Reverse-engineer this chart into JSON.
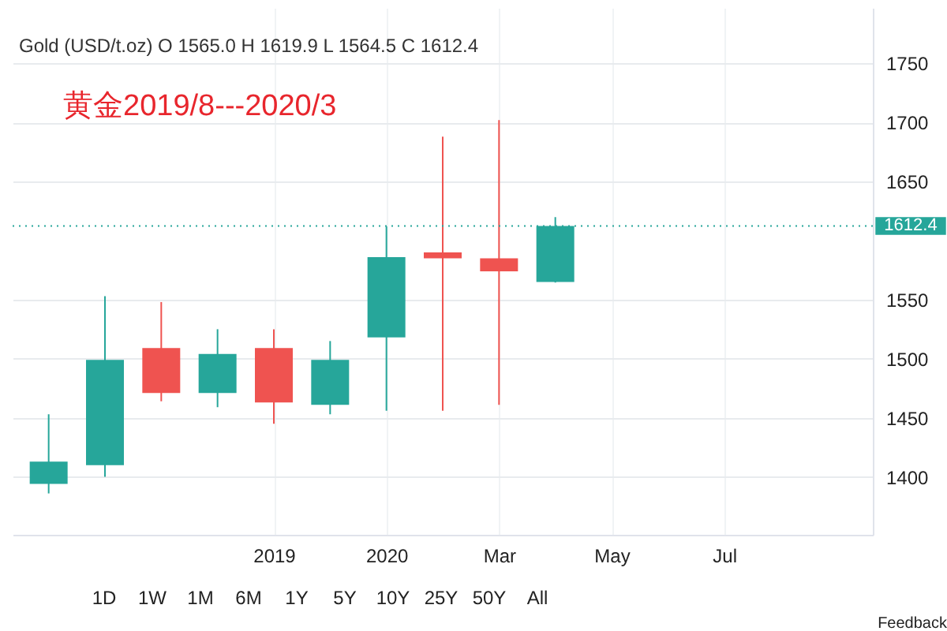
{
  "chart_data": {
    "type": "candlestick",
    "title": "黄金2019/8---2020/3",
    "subtitle": "Gold (USD/t.oz) O 1565.0 H 1619.9 L 1564.5 C 1612.4",
    "categories": [
      null,
      null,
      null,
      null,
      "2019",
      null,
      "2020",
      null,
      "Mar",
      null,
      "May",
      null,
      "Jul",
      null,
      null
    ],
    "ohlc": [
      [
        1394,
        1453,
        1386,
        1413
      ],
      [
        1410,
        1553,
        1400,
        1499
      ],
      [
        1509,
        1548,
        1464,
        1471
      ],
      [
        1471,
        1525,
        1459,
        1504
      ],
      [
        1509,
        1525,
        1445,
        1463
      ],
      [
        1461,
        1515,
        1453,
        1499
      ],
      [
        1518,
        1612,
        1456,
        1586
      ],
      [
        1590,
        1688,
        1456,
        1585
      ],
      [
        1585,
        1702,
        1461,
        1574
      ],
      [
        1565.0,
        1619.9,
        1564.5,
        1612.4
      ],
      null,
      null,
      null,
      null,
      null
    ],
    "colors": [
      "#26a69a",
      "#26a69a",
      "#ef5350",
      "#26a69a",
      "#ef5350",
      "#26a69a",
      "#26a69a",
      "#ef5350",
      "#ef5350",
      "#26a69a",
      null,
      null,
      null,
      null,
      null
    ],
    "ylim": [
      1351,
      1797
    ],
    "yticks": [
      1400,
      1450,
      1500,
      1550,
      1650,
      1700,
      1750
    ],
    "ref_lines": [
      {
        "axis": "y",
        "value": 1612.4,
        "label": "1612.4",
        "color": "#26a69a",
        "line_style": "dotted"
      }
    ],
    "grid": true,
    "annotations": [
      "1D",
      "1W",
      "1M",
      "6M",
      "1Y",
      "5Y",
      "10Y",
      "25Y",
      "50Y",
      "All",
      "Feedback"
    ]
  }
}
